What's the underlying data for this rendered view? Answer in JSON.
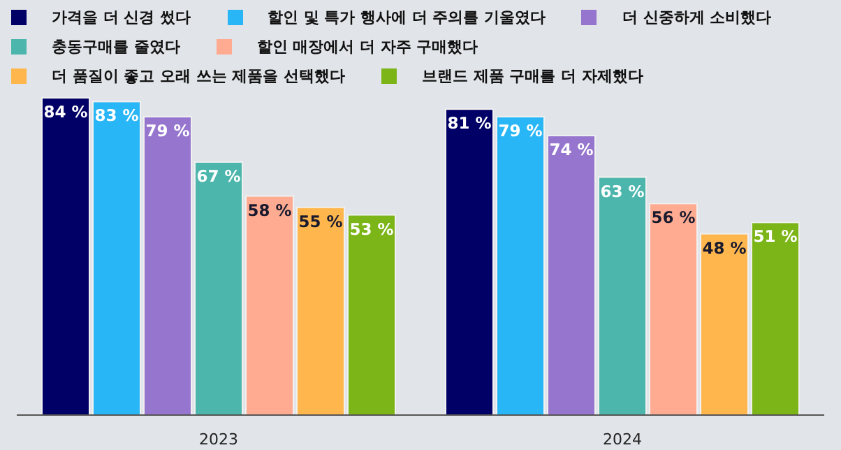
{
  "chart_data": {
    "type": "bar",
    "relative": false,
    "categories": [
      "2023",
      "2024"
    ],
    "legend": "top left",
    "grid": false,
    "series": [
      {
        "name": "가격을 더 신경 썼다",
        "color": "#000066",
        "values": [
          84,
          81
        ],
        "value_labels": [
          "84 %",
          "81 %"
        ]
      },
      {
        "name": "할인 및 특가 행사에 더 주의를 기울였다",
        "color": "#29b6f6",
        "values": [
          83,
          79
        ],
        "value_labels": [
          "83 %",
          "79 %"
        ]
      },
      {
        "name": "더 신중하게 소비했다",
        "color": "#9575cd",
        "values": [
          79,
          74
        ],
        "value_labels": [
          "79 %",
          "74 %"
        ]
      },
      {
        "name": "충동구매를 줄였다",
        "color": "#4db6ac",
        "values": [
          67,
          63
        ],
        "value_labels": [
          "67 %",
          "63 %"
        ]
      },
      {
        "name": "할인 매장에서 더 자주 구매했다",
        "color": "#ffab91",
        "values": [
          58,
          56
        ],
        "value_labels": [
          "58 %",
          "56 %"
        ]
      },
      {
        "name": "더 품질이 좋고 오래 쓰는 제품을 선택했다",
        "color": "#ffb74d",
        "values": [
          55,
          48
        ],
        "value_labels": [
          "55 %",
          "48 %"
        ]
      },
      {
        "name": "브랜드 제품 구매를 더 자제했다",
        "color": "#7cb518",
        "values": [
          53,
          51
        ],
        "value_labels": [
          "53 %",
          "51 %"
        ]
      }
    ]
  }
}
